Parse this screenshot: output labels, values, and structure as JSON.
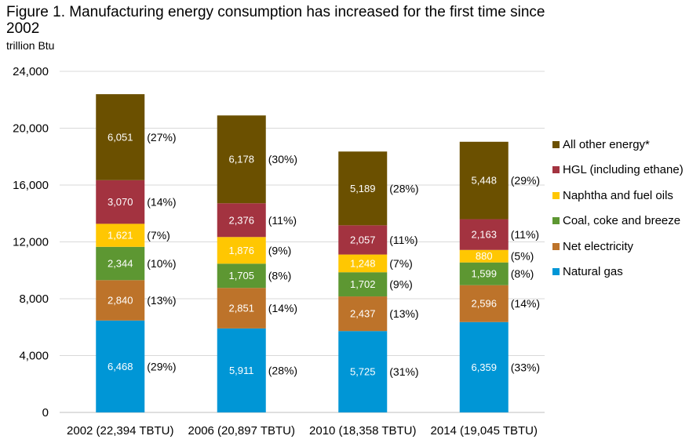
{
  "chart_data": {
    "type": "bar",
    "stacked": true,
    "title": "Figure 1. Manufacturing energy consumption has increased for the first time since 2002",
    "ylabel": "trillion Btu",
    "ylim": [
      0,
      24000
    ],
    "yticks": [
      "0",
      "4,000",
      "8,000",
      "12,000",
      "16,000",
      "20,000",
      "24,000"
    ],
    "ytick_values": [
      0,
      4000,
      8000,
      12000,
      16000,
      20000,
      24000
    ],
    "grid": true,
    "legend_position": "right",
    "categories": [
      "2002 (22,394 TBTU)",
      "2006 (20,897 TBTU)",
      "2010 (18,358 TBTU)",
      "2014 (19,045 TBTU)"
    ],
    "series": [
      {
        "name": "Natural gas",
        "color": "#0096d6",
        "values": [
          6468,
          5911,
          5725,
          6359
        ],
        "labels": [
          "6,468",
          "5,911",
          "5,725",
          "6,359"
        ],
        "pct": [
          "(29%)",
          "(28%)",
          "(31%)",
          "(33%)"
        ]
      },
      {
        "name": "Net electricity",
        "color": "#bd732a",
        "values": [
          2840,
          2851,
          2437,
          2596
        ],
        "labels": [
          "2,840",
          "2,851",
          "2,437",
          "2,596"
        ],
        "pct": [
          "(13%)",
          "(14%)",
          "(13%)",
          "(14%)"
        ]
      },
      {
        "name": "Coal, coke and breeze",
        "color": "#5d9732",
        "values": [
          2344,
          1705,
          1702,
          1599
        ],
        "labels": [
          "2,344",
          "1,705",
          "1,702",
          "1,599"
        ],
        "pct": [
          "(10%)",
          "(8%)",
          "(9%)",
          "(8%)"
        ]
      },
      {
        "name": "Naphtha and fuel oils",
        "color": "#ffc702",
        "values": [
          1621,
          1876,
          1248,
          880
        ],
        "labels": [
          "1,621",
          "1,876",
          "1,248",
          "880"
        ],
        "pct": [
          "(7%)",
          "(9%)",
          "(7%)",
          "(5%)"
        ]
      },
      {
        "name": "HGL (including ethane)",
        "color": "#a33340",
        "values": [
          3070,
          2376,
          2057,
          2163
        ],
        "labels": [
          "3,070",
          "2,376",
          "2,057",
          "2,163"
        ],
        "pct": [
          "(14%)",
          "(11%)",
          "(11%)",
          "(11%)"
        ]
      },
      {
        "name": "All other energy*",
        "color": "#6b5000",
        "values": [
          6051,
          6178,
          5189,
          5448
        ],
        "labels": [
          "6,051",
          "6,178",
          "5,189",
          "5,448"
        ],
        "pct": [
          "(27%)",
          "(30%)",
          "(28%)",
          "(29%)"
        ]
      }
    ]
  }
}
